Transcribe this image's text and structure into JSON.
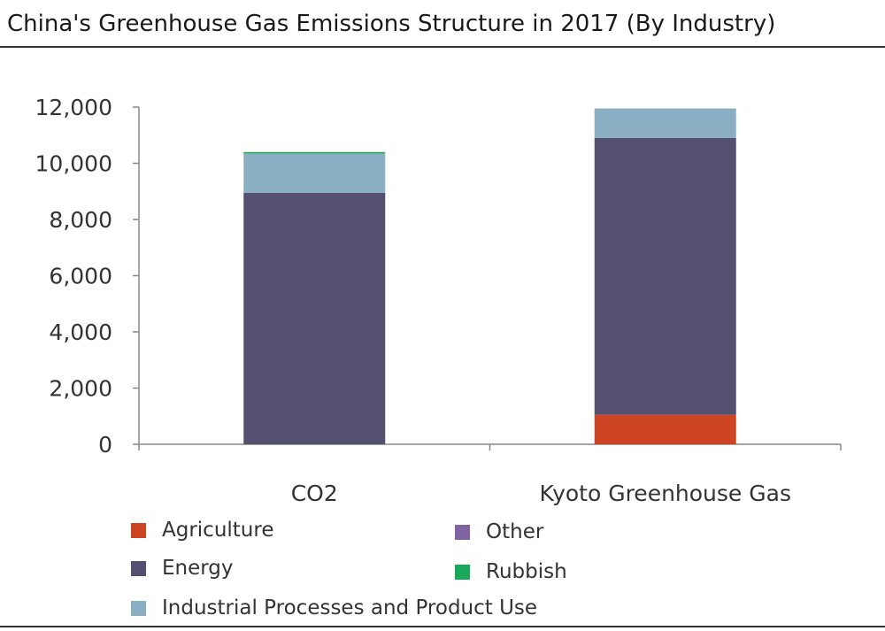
{
  "chart_data": {
    "type": "bar",
    "stacked": true,
    "title": "China's Greenhouse Gas Emissions Structure in 2017 (By Industry)",
    "xlabel": "",
    "ylabel": "",
    "categories": [
      "CO2",
      "Kyoto Greenhouse Gas"
    ],
    "ylim": [
      0,
      12000
    ],
    "yticks": [
      0,
      2000,
      4000,
      6000,
      8000,
      10000,
      12000
    ],
    "ytick_labels": [
      "0",
      "2,000",
      "4,000",
      "6,000",
      "8,000",
      "10,000",
      "12,000"
    ],
    "grid": false,
    "legend_position": "bottom",
    "series": [
      {
        "name": "Agriculture",
        "color": "#cc4422",
        "values": [
          0,
          1050
        ]
      },
      {
        "name": "Energy",
        "color": "#545070",
        "values": [
          8950,
          9850
        ]
      },
      {
        "name": "Industrial Processes and Product Use",
        "color": "#8aaec2",
        "values": [
          1400,
          1050
        ]
      },
      {
        "name": "Other",
        "color": "#8064a2",
        "values": [
          0,
          0
        ]
      },
      {
        "name": "Rubbish",
        "color": "#1aa85a",
        "values": [
          50,
          0
        ]
      }
    ]
  }
}
